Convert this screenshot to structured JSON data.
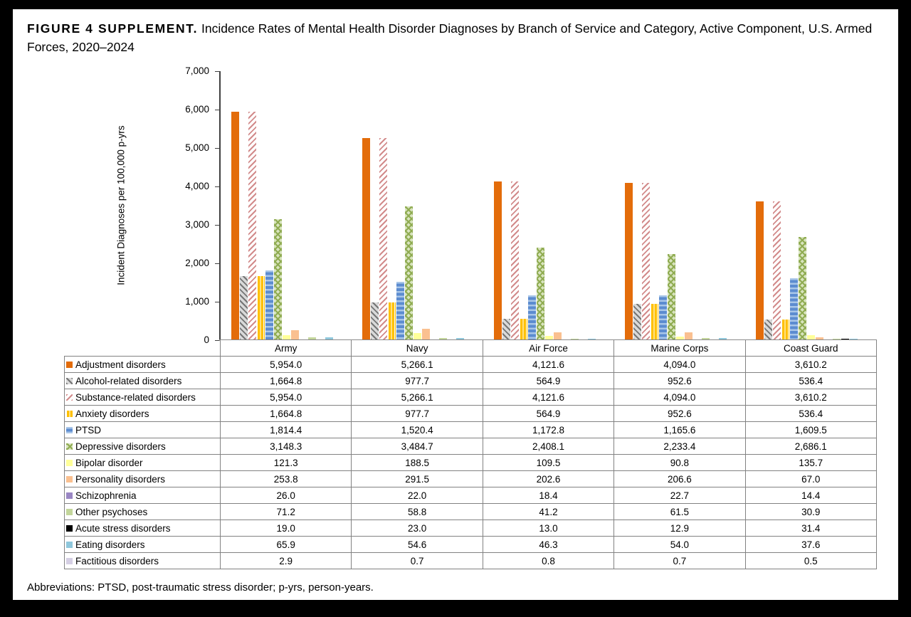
{
  "figure": {
    "title_label": "FIGURE 4 SUPPLEMENT.",
    "title_text": "Incidence Rates of Mental Health Disorder Diagnoses by Branch of Service and Category, Active Component, U.S. Armed Forces, 2020–2024",
    "footnote": "Abbreviations: PTSD, post-traumatic stress disorder; p-yrs, person-years."
  },
  "chart_data": {
    "type": "bar",
    "title": "",
    "xlabel": "",
    "ylabel": "Incident Diagnoses per 100,000 p-yrs",
    "ylim": [
      0,
      7000
    ],
    "ytick_step": 1000,
    "grid": false,
    "legend_position": "data-table-left-column",
    "categories": [
      "Army",
      "Navy",
      "Air Force",
      "Marine Corps",
      "Coast Guard"
    ],
    "series": [
      {
        "name": "Adjustment disorders",
        "pattern": "solid",
        "bg": "#E36C0A",
        "fg": "#E36C0A",
        "values": [
          5954.0,
          5266.1,
          4121.6,
          4094.0,
          3610.2
        ]
      },
      {
        "name": "Alcohol-related disorders",
        "pattern": "diag-down",
        "bg": "#D9D9D9",
        "fg": "#757575",
        "values": [
          1664.8,
          977.7,
          564.9,
          952.6,
          536.4
        ]
      },
      {
        "name": "Substance-related disorders",
        "pattern": "diag-up",
        "bg": "#FFFFFF",
        "fg": "#D28B8B",
        "values": [
          5954.0,
          5266.1,
          4121.6,
          4094.0,
          3610.2
        ]
      },
      {
        "name": "Anxiety disorders",
        "pattern": "vertical",
        "bg": "#FFC000",
        "fg": "#FFFFFF",
        "values": [
          1664.8,
          977.7,
          564.9,
          952.6,
          536.4
        ]
      },
      {
        "name": "PTSD",
        "pattern": "horizontal",
        "bg": "#5C8CD0",
        "fg": "#A9C6E8",
        "values": [
          1814.4,
          1520.4,
          1172.8,
          1165.6,
          1609.5
        ]
      },
      {
        "name": "Depressive disorders",
        "pattern": "weave",
        "bg": "#D8E4BE",
        "fg": "#90AC52",
        "values": [
          3148.3,
          3484.7,
          2408.1,
          2233.4,
          2686.1
        ]
      },
      {
        "name": "Bipolar disorder",
        "pattern": "solid",
        "bg": "#FFFF99",
        "fg": "#FFFF99",
        "values": [
          121.3,
          188.5,
          109.5,
          90.8,
          135.7
        ]
      },
      {
        "name": "Personality disorders",
        "pattern": "solid",
        "bg": "#FAC090",
        "fg": "#FAC090",
        "values": [
          253.8,
          291.5,
          202.6,
          206.6,
          67.0
        ]
      },
      {
        "name": "Schizophrenia",
        "pattern": "solid",
        "bg": "#9A87C4",
        "fg": "#9A87C4",
        "values": [
          26.0,
          22.0,
          18.4,
          22.7,
          14.4
        ]
      },
      {
        "name": "Other psychoses",
        "pattern": "solid",
        "bg": "#C3D69B",
        "fg": "#C3D69B",
        "values": [
          71.2,
          58.8,
          41.2,
          61.5,
          30.9
        ]
      },
      {
        "name": "Acute stress disorders",
        "pattern": "solid",
        "bg": "#000000",
        "fg": "#000000",
        "values": [
          19.0,
          23.0,
          13.0,
          12.9,
          31.4
        ]
      },
      {
        "name": "Eating disorders",
        "pattern": "solid",
        "bg": "#8FC7DC",
        "fg": "#8FC7DC",
        "values": [
          65.9,
          54.6,
          46.3,
          54.0,
          37.6
        ]
      },
      {
        "name": "Factitious disorders",
        "pattern": "solid",
        "bg": "#D5CFE4",
        "fg": "#D5CFE4",
        "values": [
          2.9,
          0.7,
          0.8,
          0.7,
          0.5
        ]
      }
    ]
  }
}
